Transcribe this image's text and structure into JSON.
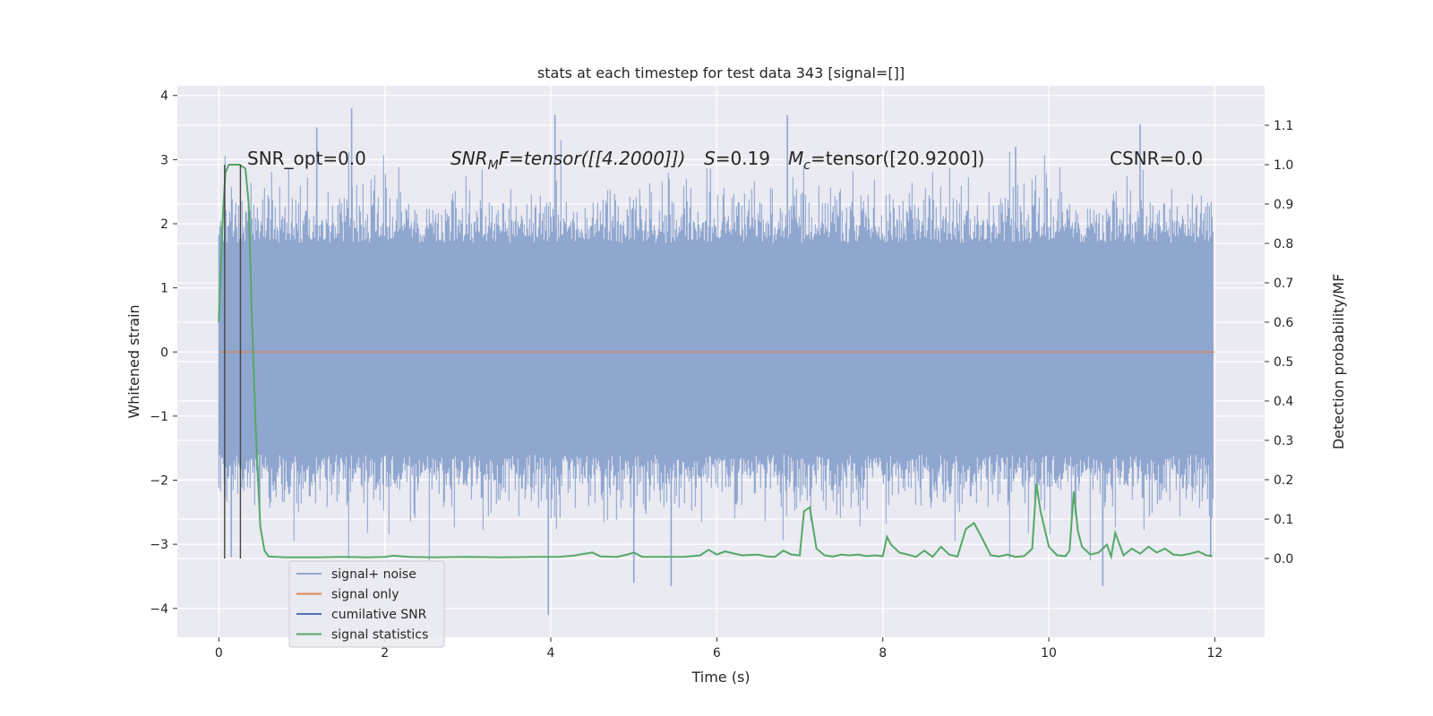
{
  "chart_data": {
    "type": "line",
    "title": "stats at each timestep for test data 343 [signal=[]]",
    "xlabel": "Time (s)",
    "ylabel": "Whitened strain",
    "ylabel_right": "Detection probability/MF",
    "xlim": [
      -0.5,
      12.6
    ],
    "ylim": [
      -4.45,
      4.15
    ],
    "ylim_right": [
      -0.2,
      1.2
    ],
    "x_ticks": [
      0,
      2,
      4,
      6,
      8,
      10,
      12
    ],
    "x_tick_labels": [
      "0",
      "2",
      "4",
      "6",
      "8",
      "10",
      "12"
    ],
    "y_ticks": [
      -4,
      -3,
      -2,
      -1,
      0,
      1,
      2,
      3,
      4
    ],
    "y_tick_labels": [
      "−4",
      "−3",
      "−2",
      "−1",
      "0",
      "1",
      "2",
      "3",
      "4"
    ],
    "y2_ticks": [
      0.0,
      0.1,
      0.2,
      0.3,
      0.4,
      0.5,
      0.6,
      0.7,
      0.8,
      0.9,
      1.0,
      1.1
    ],
    "y2_tick_labels": [
      "0.0",
      "0.1",
      "0.2",
      "0.3",
      "0.4",
      "0.5",
      "0.6",
      "0.7",
      "0.8",
      "0.9",
      "1.0",
      "1.1"
    ],
    "grid": true,
    "legend_position": "lower-left",
    "annotations": {
      "snr_opt": "SNR_opt=0.0",
      "snr_mf_prefix": "SNR",
      "snr_mf_sub": "M",
      "snr_mf_suffix": "F=tensor([[4.2000]])",
      "s_italic": "S",
      "s_value": "=0.19",
      "mc_italic": "M",
      "mc_sub": "c",
      "mc_value": "=tensor([20.9200])",
      "csnr": "CSNR=0.0"
    },
    "vertical_markers_s": [
      0.07,
      0.26
    ],
    "noise": {
      "t_start": 0.0,
      "t_end": 11.98,
      "core_band": [
        -1.6,
        1.7
      ],
      "typical_extent": [
        -2.6,
        2.6
      ],
      "notable_peaks": [
        {
          "t": 1.6,
          "v": 3.8
        },
        {
          "t": 1.18,
          "v": 3.5
        },
        {
          "t": 3.97,
          "v": -4.1
        },
        {
          "t": 4.05,
          "v": 3.7
        },
        {
          "t": 5.0,
          "v": -3.6
        },
        {
          "t": 5.45,
          "v": -3.65
        },
        {
          "t": 6.85,
          "v": 3.7
        },
        {
          "t": 9.6,
          "v": 3.2
        },
        {
          "t": 11.1,
          "v": 3.55
        },
        {
          "t": 10.65,
          "v": -3.65
        },
        {
          "t": 0.15,
          "v": -3.2
        },
        {
          "t": 11.95,
          "v": -3.2
        }
      ]
    },
    "series": [
      {
        "name": "signal+ noise",
        "color": "#8fa6cf",
        "kind": "band"
      },
      {
        "name": "signal only",
        "color": "#dd8452",
        "x": [
          0,
          12
        ],
        "y": [
          0,
          0
        ]
      },
      {
        "name": "cumilative SNR",
        "color": "#4c72b0",
        "x": [],
        "y": []
      },
      {
        "name": "signal statistics",
        "color": "#55a868",
        "axis": "right",
        "x": [
          0.0,
          0.05,
          0.08,
          0.12,
          0.18,
          0.25,
          0.32,
          0.36,
          0.4,
          0.45,
          0.5,
          0.55,
          0.6,
          0.8,
          1.2,
          1.5,
          1.8,
          2.0,
          2.1,
          2.3,
          2.6,
          3.0,
          3.4,
          3.8,
          4.1,
          4.3,
          4.4,
          4.5,
          4.6,
          4.8,
          4.92,
          5.0,
          5.1,
          5.3,
          5.6,
          5.8,
          5.9,
          6.0,
          6.1,
          6.3,
          6.5,
          6.6,
          6.7,
          6.8,
          6.9,
          7.0,
          7.05,
          7.12,
          7.2,
          7.3,
          7.4,
          7.5,
          7.6,
          7.7,
          7.8,
          7.9,
          8.0,
          8.05,
          8.1,
          8.2,
          8.3,
          8.4,
          8.5,
          8.6,
          8.7,
          8.8,
          8.9,
          9.0,
          9.1,
          9.2,
          9.3,
          9.4,
          9.5,
          9.6,
          9.7,
          9.75,
          9.8,
          9.85,
          9.9,
          10.0,
          10.1,
          10.2,
          10.25,
          10.3,
          10.35,
          10.4,
          10.5,
          10.6,
          10.7,
          10.75,
          10.8,
          10.9,
          11.0,
          11.1,
          11.2,
          11.3,
          11.4,
          11.5,
          11.6,
          11.7,
          11.8,
          11.9,
          11.97
        ],
        "y": [
          0.6,
          0.88,
          0.98,
          1.0,
          1.0,
          1.0,
          0.99,
          0.9,
          0.6,
          0.3,
          0.08,
          0.02,
          0.005,
          0.003,
          0.003,
          0.004,
          0.003,
          0.004,
          0.007,
          0.004,
          0.003,
          0.004,
          0.003,
          0.004,
          0.004,
          0.008,
          0.012,
          0.015,
          0.005,
          0.004,
          0.01,
          0.015,
          0.004,
          0.004,
          0.004,
          0.008,
          0.022,
          0.01,
          0.018,
          0.008,
          0.01,
          0.005,
          0.004,
          0.02,
          0.01,
          0.008,
          0.12,
          0.13,
          0.025,
          0.008,
          0.005,
          0.01,
          0.008,
          0.01,
          0.006,
          0.008,
          0.006,
          0.055,
          0.035,
          0.015,
          0.01,
          0.004,
          0.02,
          0.004,
          0.03,
          0.01,
          0.005,
          0.075,
          0.09,
          0.05,
          0.008,
          0.005,
          0.01,
          0.004,
          0.006,
          0.015,
          0.025,
          0.19,
          0.12,
          0.03,
          0.008,
          0.006,
          0.02,
          0.17,
          0.07,
          0.03,
          0.01,
          0.015,
          0.035,
          0.005,
          0.065,
          0.008,
          0.025,
          0.012,
          0.03,
          0.015,
          0.025,
          0.01,
          0.008,
          0.012,
          0.018,
          0.008,
          0.006
        ]
      }
    ]
  }
}
